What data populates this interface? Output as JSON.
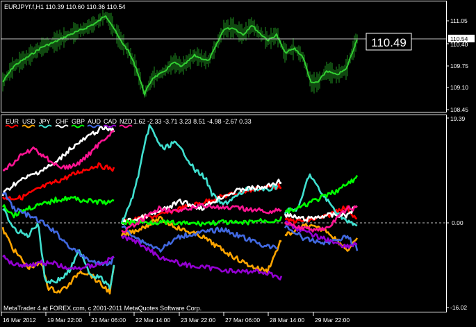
{
  "upper": {
    "header": "EURJPYf.f,H1  110.39 110.60 110.36 110.54",
    "bid_tag": "110.54",
    "big_price": "110.49",
    "y_ticks": [
      "111.05",
      "110.40",
      "109.75",
      "109.10",
      "108.45"
    ]
  },
  "lower": {
    "legend": [
      {
        "name": "EUR",
        "color": "#ff0000"
      },
      {
        "name": "USD",
        "color": "#ffa500"
      },
      {
        "name": "JPY",
        "color": "#40e0d0"
      },
      {
        "name": "CHF",
        "color": "#ffffff"
      },
      {
        "name": "GBP",
        "color": "#00ff00"
      },
      {
        "name": "AUD",
        "color": "#4169e1"
      },
      {
        "name": "CAD",
        "color": "#9400d3"
      },
      {
        "name": "NZD",
        "color": "#ff1493"
      }
    ],
    "values_text": "1.62 -2.33 -3.71 3.23 8.51 -4.98 -2.67 0.33",
    "y_ticks": [
      "19.39",
      "0.00",
      "-16.02"
    ],
    "copyright": "MetaTrader 4 at FOREX.com, c 2001-2011 MetaQuotes Software Corp."
  },
  "time_axis": [
    "16 Mar 2012",
    "19 Mar 22:00",
    "21 Mar 06:00",
    "22 Mar 14:00",
    "23 Mar 22:00",
    "27 Mar 06:00",
    "28 Mar 14:00",
    "29 Mar 22:00"
  ],
  "colors": {
    "background": "#000000",
    "frame": "#ffffff",
    "price_line": "#32cd32"
  }
}
